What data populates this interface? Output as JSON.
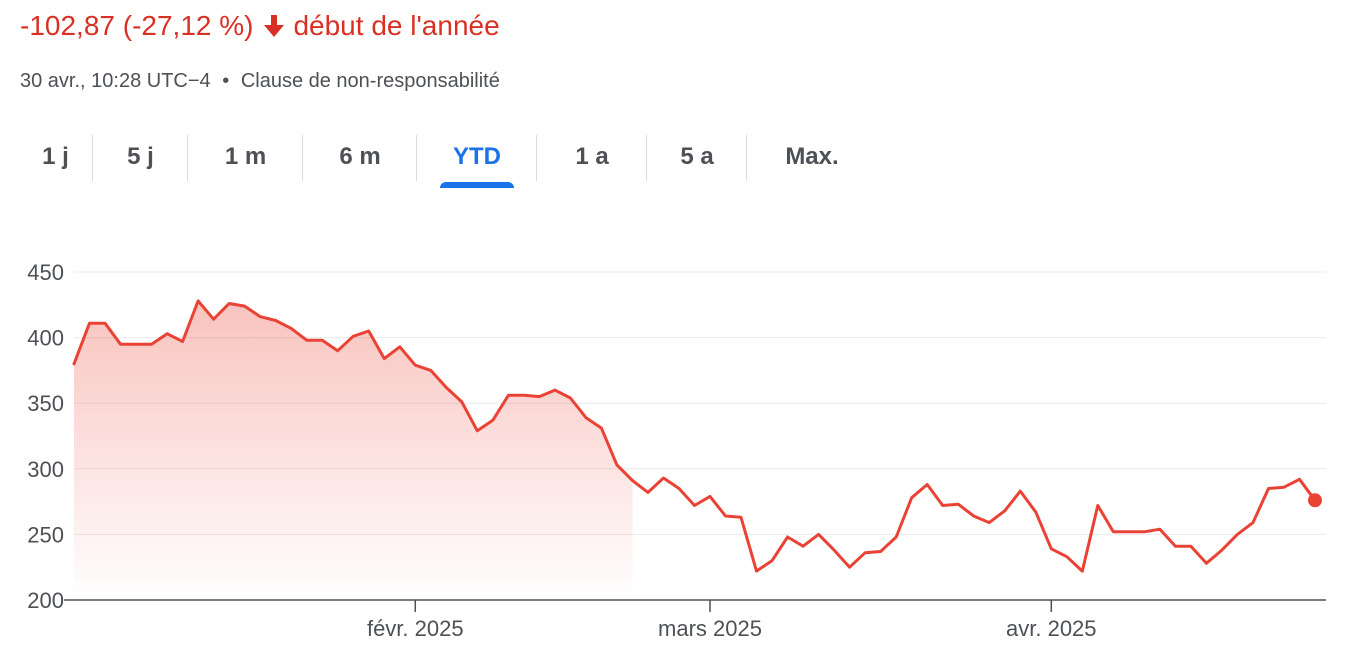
{
  "header": {
    "change_text": "-102,87 (-27,12 %)",
    "change_direction": "arrow-down-icon",
    "period_label": "début de l'année",
    "timestamp": "30 avr., 10:28 UTC−4",
    "separator": "•",
    "disclaimer_link": "Clause de non-responsabilité"
  },
  "tabs": [
    {
      "label": "1 j",
      "active": false
    },
    {
      "label": "5 j",
      "active": false
    },
    {
      "label": "1 m",
      "active": false
    },
    {
      "label": "6 m",
      "active": false
    },
    {
      "label": "YTD",
      "active": true
    },
    {
      "label": "1 a",
      "active": false
    },
    {
      "label": "5 a",
      "active": false
    },
    {
      "label": "Max.",
      "active": false
    }
  ],
  "colors": {
    "negative": "#d93025",
    "accent": "#1a73e8",
    "line": "#ea4335",
    "text": "#4d5156",
    "grid": "#e8eaed"
  },
  "chart_data": {
    "type": "area",
    "title": "",
    "xlabel": "",
    "ylabel": "",
    "ylim": [
      200,
      450
    ],
    "yticks": [
      200,
      250,
      300,
      350,
      400,
      450
    ],
    "xtick_labels": [
      "févr. 2025",
      "mars 2025",
      "avr. 2025"
    ],
    "grid": true,
    "last_point_marker": true,
    "series": [
      {
        "values": [
          380,
          411,
          411,
          395,
          395,
          395,
          403,
          397,
          428,
          414,
          426,
          424,
          416,
          413,
          407,
          398,
          398,
          390,
          401,
          405,
          384,
          393,
          379,
          375,
          362,
          351,
          329,
          337,
          356,
          356,
          355,
          360,
          354,
          339,
          331,
          303,
          291,
          282,
          293,
          285,
          272,
          279,
          264,
          263,
          222,
          230,
          248,
          241,
          250,
          238,
          225,
          236,
          237,
          248,
          278,
          288,
          272,
          273,
          264,
          259,
          268,
          283,
          267,
          239,
          233,
          222,
          272,
          252,
          252,
          252,
          254,
          241,
          241,
          228,
          238,
          250,
          259,
          285,
          286,
          292,
          276
        ]
      }
    ]
  }
}
